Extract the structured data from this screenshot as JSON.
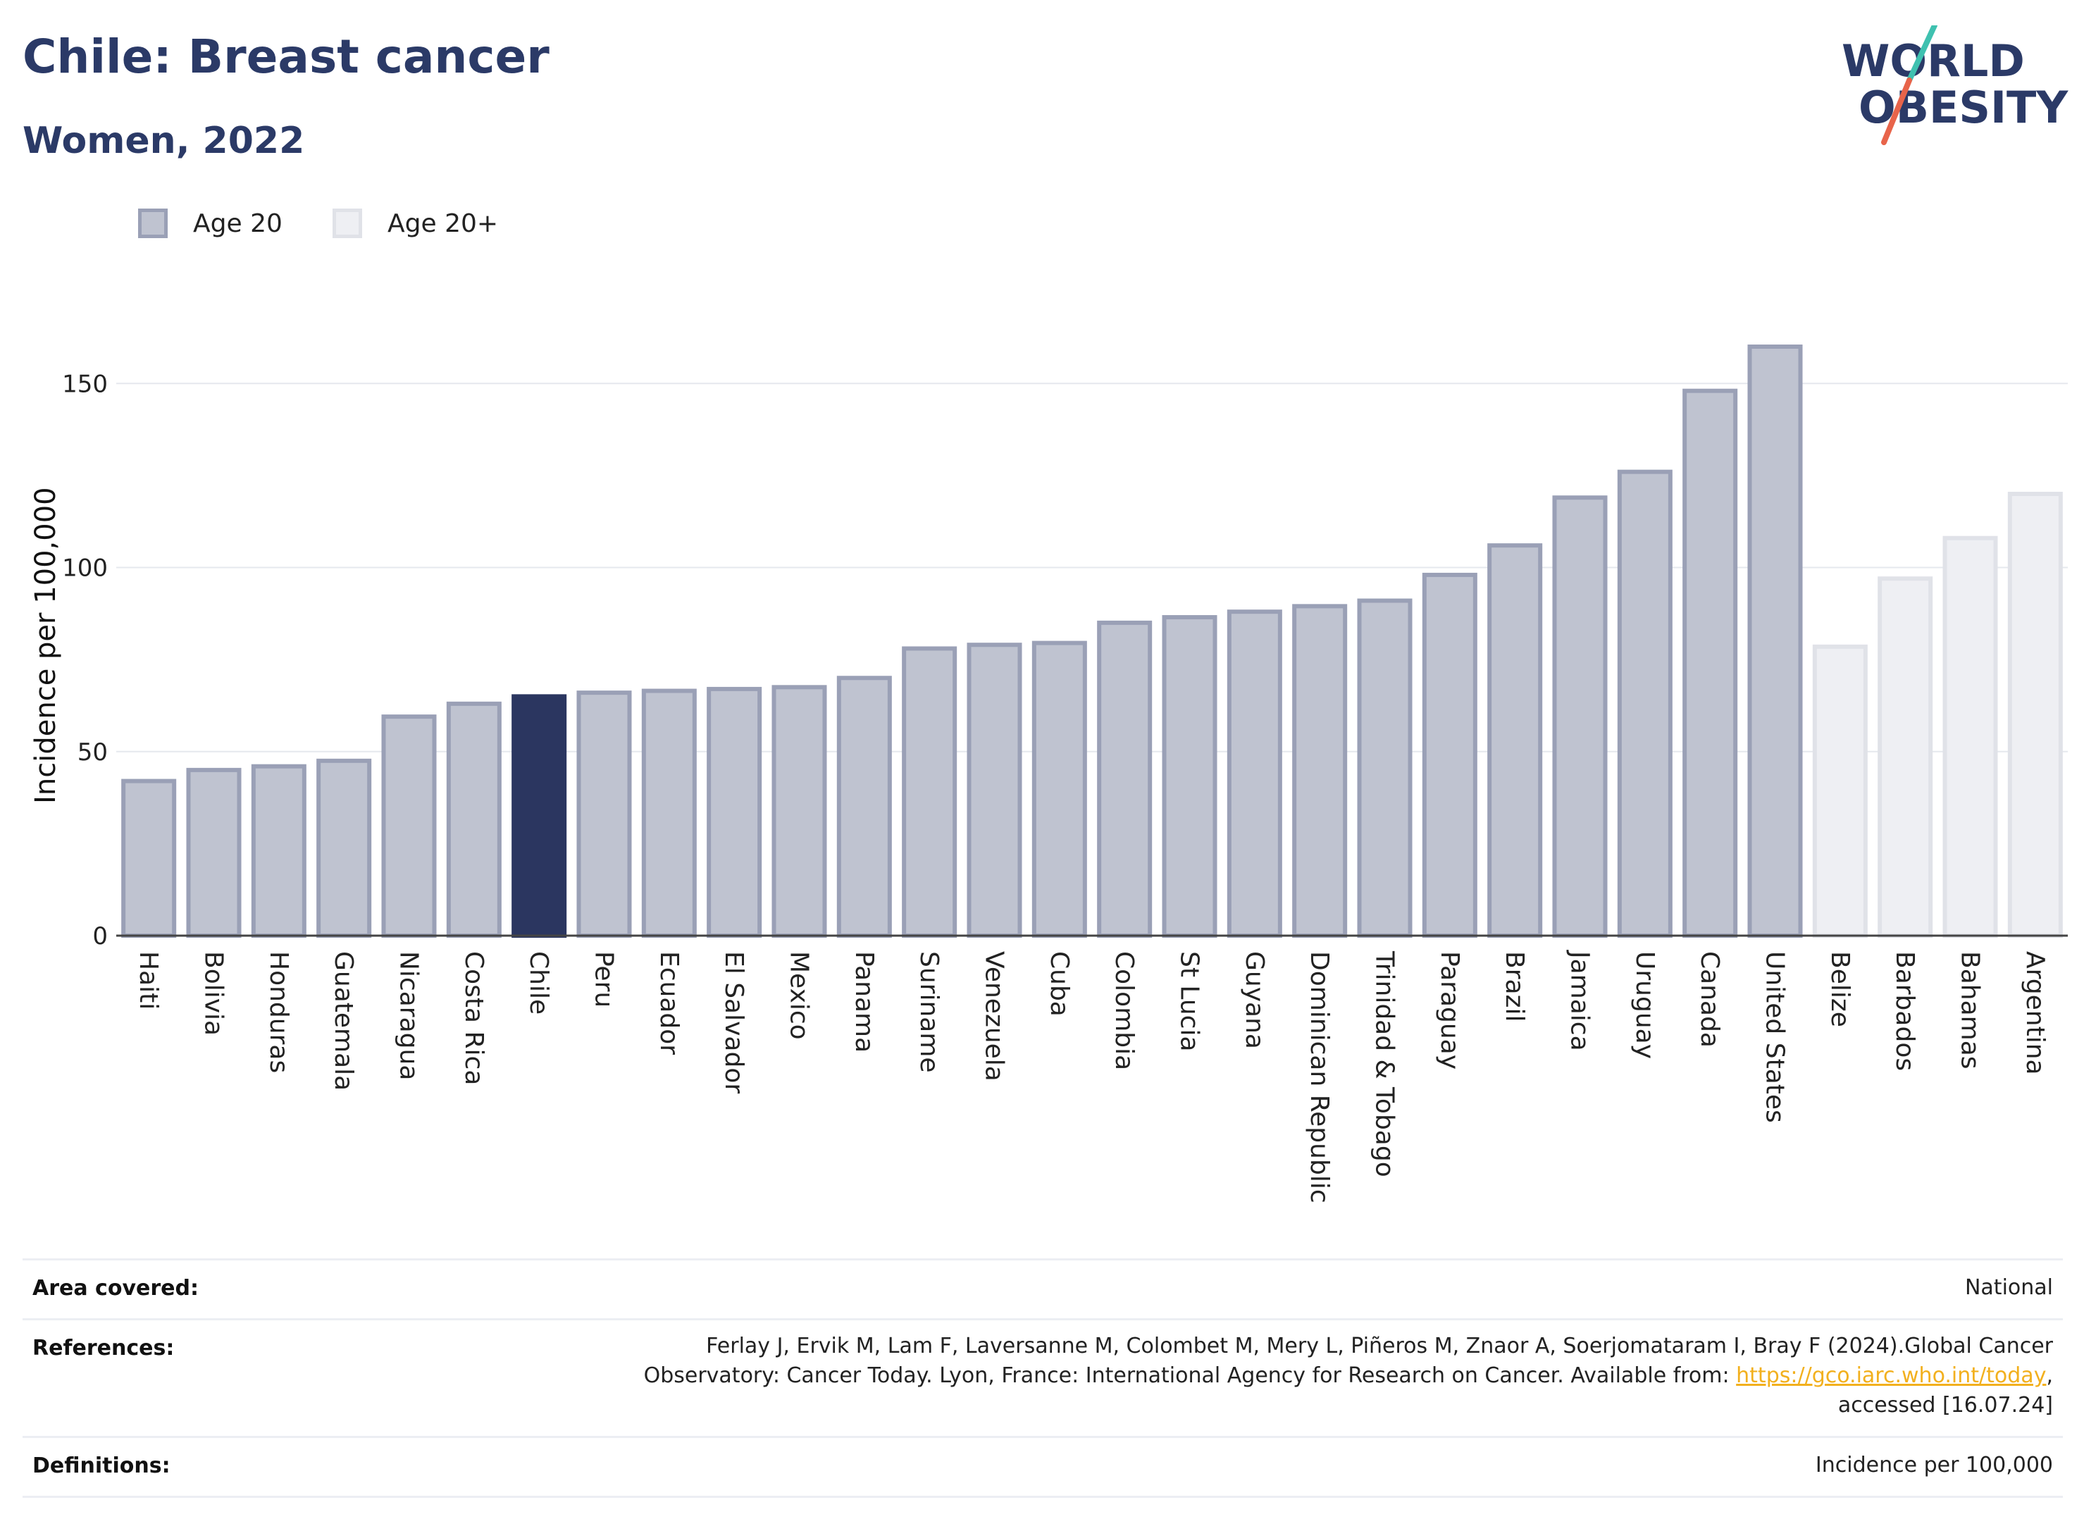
{
  "header": {
    "title": "Chile: Breast cancer",
    "subtitle": "Women, 2022"
  },
  "logo": {
    "line1": "WORLD",
    "line2": "OBESITY",
    "slash_colors": [
      "#3fc1b0",
      "#e8644a"
    ],
    "text_color": "#2b3a67"
  },
  "legend": [
    {
      "label": "Age 20",
      "color": "#bfc3d0",
      "border": "#9aa0b6"
    },
    {
      "label": "Age 20+",
      "color": "#eeeff3",
      "border": "#e0e2e8"
    }
  ],
  "chart_data": {
    "type": "bar",
    "ylabel": "Incidence per 100,000",
    "ylim": [
      0,
      170
    ],
    "yticks": [
      0,
      50,
      100,
      150
    ],
    "grid": true,
    "legend_position": "top-left",
    "highlight": "Chile",
    "categories": [
      "Haiti",
      "Bolivia",
      "Honduras",
      "Guatemala",
      "Nicaragua",
      "Costa Rica",
      "Chile",
      "Peru",
      "Ecuador",
      "El Salvador",
      "Mexico",
      "Panama",
      "Suriname",
      "Venezuela",
      "Cuba",
      "Colombia",
      "St Lucia",
      "Guyana",
      "Dominican Republic",
      "Trinidad & Tobago",
      "Paraguay",
      "Brazil",
      "Jamaica",
      "Uruguay",
      "Canada",
      "United States",
      "Belize",
      "Barbados",
      "Bahamas",
      "Argentina"
    ],
    "values": [
      42,
      45,
      46,
      47.5,
      59.5,
      63,
      65,
      66,
      66.5,
      67,
      67.5,
      70,
      78,
      79,
      79.5,
      85,
      86.5,
      88,
      89.5,
      91,
      98,
      106,
      119,
      126,
      148,
      160,
      78.5,
      97,
      108,
      120
    ],
    "series_group": [
      "Age 20",
      "Age 20",
      "Age 20",
      "Age 20",
      "Age 20",
      "Age 20",
      "Age 20",
      "Age 20",
      "Age 20",
      "Age 20",
      "Age 20",
      "Age 20",
      "Age 20",
      "Age 20",
      "Age 20",
      "Age 20",
      "Age 20",
      "Age 20",
      "Age 20",
      "Age 20",
      "Age 20",
      "Age 20",
      "Age 20",
      "Age 20",
      "Age 20",
      "Age 20",
      "Age 20+",
      "Age 20+",
      "Age 20+",
      "Age 20+"
    ],
    "colors": {
      "highlight": "#2b3660",
      "age20": "#bfc3d0",
      "age20_border": "#9aa0b6",
      "age20plus": "#eeeff3",
      "age20plus_border": "#e0e2e8",
      "grid": "#e6e8ee",
      "axis": "#444444"
    }
  },
  "footer": {
    "rows": [
      {
        "key": "Area covered:",
        "value": "National"
      },
      {
        "key": "References:",
        "value_lines": [
          "Ferlay J, Ervik M, Lam F, Laversanne M, Colombet M, Mery L, Piñeros M, Znaor A, Soerjomataram I, Bray F (2024).Global Cancer",
          "Observatory: Cancer Today. Lyon, France: International Agency for Research on Cancer. Available from: "
        ],
        "link": "https://gco.iarc.who.int/today",
        "after_link": ",",
        "last_line": "accessed [16.07.24]"
      },
      {
        "key": "Definitions:",
        "value": "Incidence per 100,000"
      }
    ]
  }
}
